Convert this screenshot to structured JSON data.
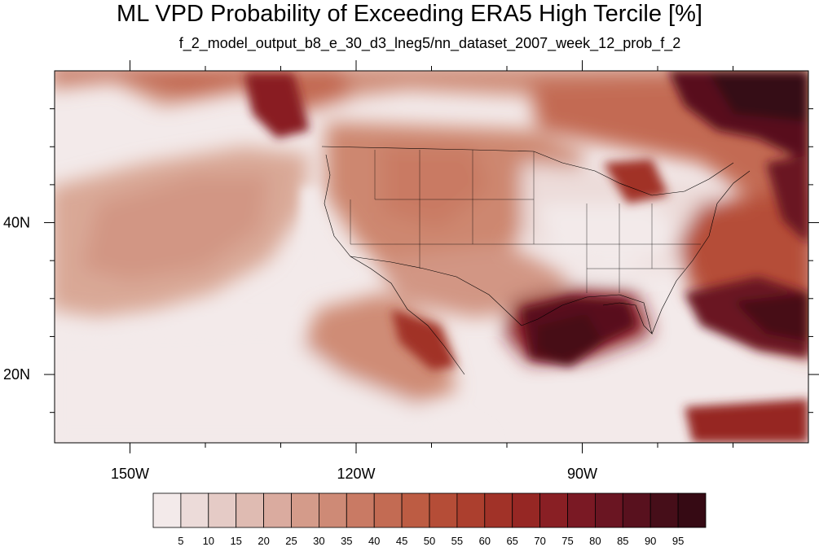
{
  "title": "ML VPD Probability of Exceeding ERA5 High Tercile [%]",
  "subtitle": "f_2_model_output_b8_e_30_d3_lneg5/nn_dataset_2007_week_12_prob_f_2",
  "map": {
    "projection": "cylindrical-equidistant",
    "lon_range": [
      -160,
      -60
    ],
    "lat_range": [
      11,
      60
    ],
    "lon_ticks": [
      {
        "value": -150,
        "label": "150W"
      },
      {
        "value": -120,
        "label": "120W"
      },
      {
        "value": -90,
        "label": "90W"
      }
    ],
    "lat_ticks": [
      {
        "value": 40,
        "label": "40N"
      },
      {
        "value": 20,
        "label": "20N"
      }
    ],
    "regions_shown": [
      "North Pacific Ocean",
      "Contiguous United States",
      "Gulf of Mexico",
      "Western North Atlantic"
    ]
  },
  "colorbar": {
    "levels": [
      "5",
      "10",
      "15",
      "20",
      "25",
      "30",
      "35",
      "40",
      "45",
      "50",
      "55",
      "60",
      "65",
      "70",
      "75",
      "80",
      "85",
      "90",
      "95"
    ],
    "colors": [
      "#f3eaea",
      "#ecdbd9",
      "#e5cbc6",
      "#dfbbb2",
      "#daab9f",
      "#d49b8a",
      "#ce8a76",
      "#c97a64",
      "#c36b53",
      "#bd5c43",
      "#b54d37",
      "#ac3f2e",
      "#a13228",
      "#962724",
      "#891f24",
      "#7a1924",
      "#6a1522",
      "#58111e",
      "#460e19",
      "#360a14"
    ]
  }
}
